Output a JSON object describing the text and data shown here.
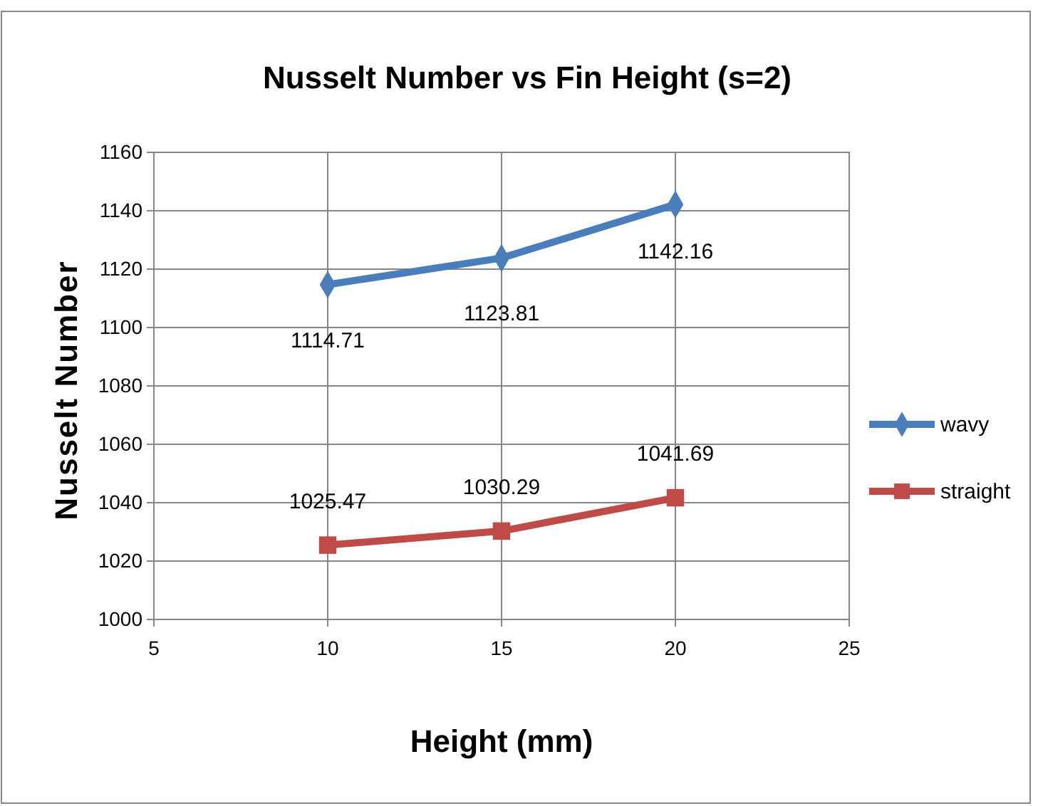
{
  "chart_data": {
    "type": "line",
    "title": "Nusselt Number vs Fin Height (s=2)",
    "xlabel": "Height (mm)",
    "ylabel": "Nusselt Number",
    "x": [
      10,
      15,
      20
    ],
    "series": [
      {
        "name": "wavy",
        "color": "#4a7ebb",
        "marker": "diamond",
        "values": [
          1114.71,
          1123.81,
          1142.16
        ]
      },
      {
        "name": "straight",
        "color": "#be4b48",
        "marker": "square",
        "values": [
          1025.47,
          1030.29,
          1041.69
        ]
      }
    ],
    "xlim": [
      5,
      25
    ],
    "xticks": [
      5,
      10,
      15,
      20,
      25
    ],
    "ylim": [
      1000,
      1160
    ],
    "yticks": [
      1000,
      1020,
      1040,
      1060,
      1080,
      1100,
      1120,
      1140,
      1160
    ],
    "grid": true,
    "legend": "right",
    "data_labels": true
  }
}
